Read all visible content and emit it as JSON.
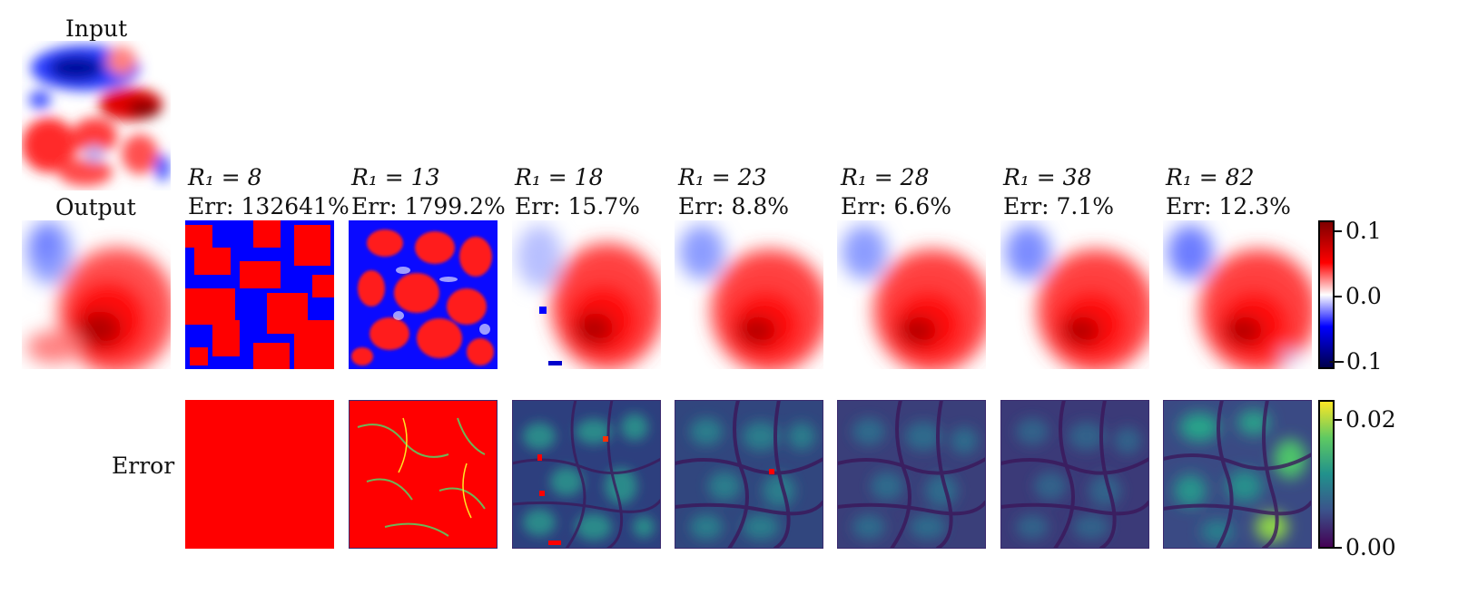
{
  "row_labels": {
    "input": "Input",
    "output": "Output",
    "error": "Error"
  },
  "columns": [
    {
      "r1_label": "R₁ = 8",
      "err_label": "Err:  132641%"
    },
    {
      "r1_label": "R₁ = 13",
      "err_label": "Err:  1799.2%"
    },
    {
      "r1_label": "R₁ = 18",
      "err_label": "Err:  15.7%"
    },
    {
      "r1_label": "R₁ = 23",
      "err_label": "Err:  8.8%"
    },
    {
      "r1_label": "R₁ = 28",
      "err_label": "Err:  6.6%"
    },
    {
      "r1_label": "R₁ = 38",
      "err_label": "Err:  7.1%"
    },
    {
      "r1_label": "R₁ = 82",
      "err_label": "Err:  12.3%"
    }
  ],
  "output_colorbar": {
    "colormap": "seismic",
    "colors": [
      "#00004c",
      "#0000ff",
      "#ffffff",
      "#ff0000",
      "#800000"
    ],
    "ticks": [
      "0.1",
      "0.0",
      "−0.1"
    ]
  },
  "error_colorbar": {
    "colormap": "viridis",
    "colors": [
      "#440154",
      "#3b528b",
      "#21918c",
      "#5ec962",
      "#fde725"
    ],
    "ticks": [
      "0.02",
      "0.00"
    ]
  }
}
